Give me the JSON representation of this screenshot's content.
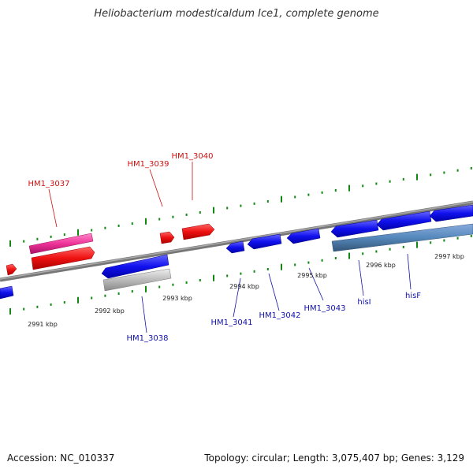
{
  "title": "Heliobacterium modesticaldum Ice1, complete genome",
  "accession": "Accession: NC_010337",
  "summary": "Topology: circular; Length: 3,075,407 bp; Genes: 3,129",
  "ticks": [
    "2991 kbp",
    "2992 kbp",
    "2993 kbp",
    "2994 kbp",
    "2995 kbp",
    "2996 kbp",
    "2997 kbp"
  ],
  "genes_top": [
    "HM1_3037",
    "HM1_3039",
    "HM1_3040"
  ],
  "genes_bottom": [
    "HM1_3038",
    "HM1_3041",
    "HM1_3042",
    "HM1_3043",
    "hisI",
    "hisF"
  ],
  "colors": {
    "forward": "#ee1111",
    "forward_light": "#ee3399",
    "reverse": "#1111ee",
    "reverse_light": "#5588bb",
    "pseudo": "#bbbbbb",
    "backbone": "#777777",
    "tick_mark": "#118811",
    "label_top": "#cc1111",
    "label_bottom": "#1111aa"
  }
}
